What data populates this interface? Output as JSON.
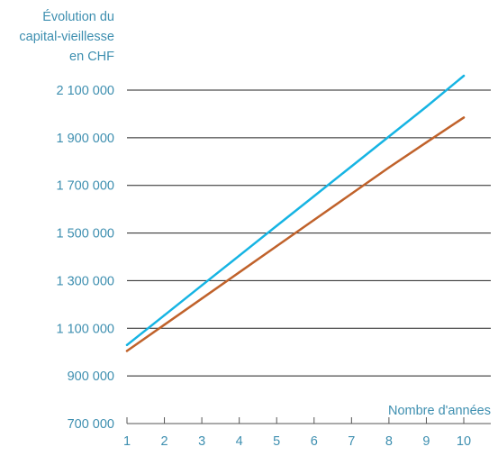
{
  "chart_data": {
    "type": "line",
    "ylabel_lines": [
      "Évolution du",
      "capital-vieillesse",
      "en CHF"
    ],
    "xlabel": "Nombre d'années",
    "x": [
      1,
      2,
      3,
      4,
      5,
      6,
      7,
      8,
      9,
      10
    ],
    "xticks": [
      "1",
      "2",
      "3",
      "4",
      "5",
      "6",
      "7",
      "8",
      "9",
      "10"
    ],
    "yticks": [
      700000,
      900000,
      1100000,
      1300000,
      1500000,
      1700000,
      1900000,
      2100000
    ],
    "ytick_labels": [
      "700 000",
      "900 000",
      "1 100 000",
      "1 300 000",
      "1 500 000",
      "1 700 000",
      "1 900 000",
      "2 100 000"
    ],
    "ylim": [
      700000,
      2100000
    ],
    "xlim": [
      1,
      10
    ],
    "grid": "horizontal",
    "series": [
      {
        "color": "#16b4e3",
        "values": [
          1030000,
          1155000,
          1280000,
          1405000,
          1530000,
          1655000,
          1780000,
          1905000,
          2030000,
          2160000
        ]
      },
      {
        "color": "#c0622b",
        "values": [
          1005000,
          1115000,
          1225000,
          1335000,
          1445000,
          1555000,
          1665000,
          1775000,
          1880000,
          1985000
        ]
      }
    ],
    "colors": {
      "text": "#3e8fb0",
      "grid": "#222222",
      "axis": "#555555"
    }
  }
}
